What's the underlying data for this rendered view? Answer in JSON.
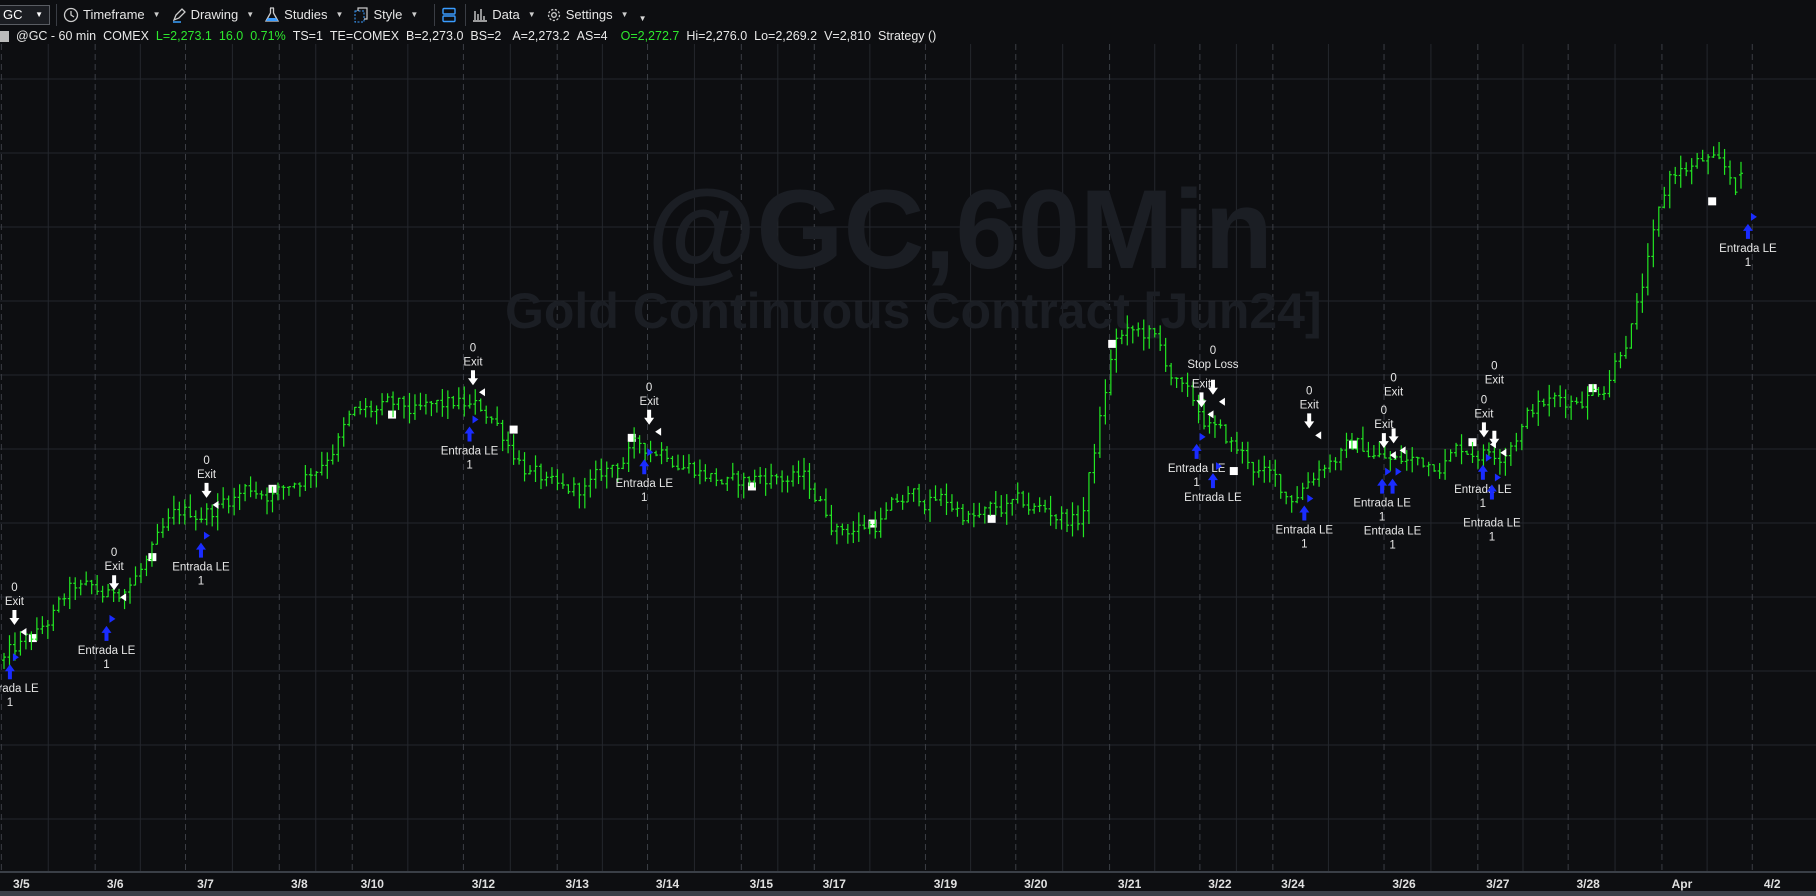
{
  "toolbar": {
    "symbol": "GC",
    "items": [
      {
        "label": "Timeframe",
        "icon": "clock-icon"
      },
      {
        "label": "Drawing",
        "icon": "pen-icon"
      },
      {
        "label": "Studies",
        "icon": "flask-icon"
      },
      {
        "label": "Style",
        "icon": "style-icon"
      },
      {
        "label": "Data",
        "icon": "bar-chart-icon"
      },
      {
        "label": "Settings",
        "icon": "gear-icon"
      }
    ]
  },
  "info": {
    "symbol": "@GC - 60 min",
    "exchange": "COMEX",
    "last": "L=2,273.1",
    "change": "16.0",
    "change_pct": "0.71%",
    "ts": "TS=1",
    "te": "TE=COMEX",
    "bid": "B=2,273.0",
    "bid_size": "BS=2",
    "ask": "A=2,273.2",
    "ask_size": "AS=4",
    "open": "O=2,272.7",
    "high": "Hi=2,276.0",
    "low": "Lo=2,269.2",
    "volume": "V=2,810",
    "strategy": "Strategy ()"
  },
  "watermark": {
    "line1": "@GC,60Min",
    "line2": "Gold Continuous Contract [Jun24]"
  },
  "colors": {
    "background": "#0d0e11",
    "bar": "#22e622",
    "entry": "#1a2cff",
    "exit": "#ffffff",
    "grid": "#24272d"
  },
  "chart_data": {
    "type": "ohlc",
    "interval": "60 min",
    "last_bar": {
      "open": 2272.7,
      "high": 2276.0,
      "low": 2269.2,
      "close": 2273.1
    },
    "close_path": [
      2149.8,
      2155.7,
      2167.4,
      2165.1,
      2173.3,
      2185.0,
      2188.5,
      2193.8,
      2192.9,
      2199.7,
      2211.4,
      2212.6,
      2211.4,
      2213.8,
      2212.0,
      2199.7,
      2190.3,
      2193.8,
      2202.6,
      2204.1,
      2199.1,
      2193.8,
      2196.8,
      2195.3,
      2183.6,
      2184.4,
      2190.3,
      2190.3,
      2185.6,
      2188.0,
      2187.4,
      2185.0,
      2231.4,
      2232.0,
      2215.8,
      2206.1,
      2198.8,
      2190.9,
      2201.2,
      2204.1,
      2199.7,
      2200.3,
      2204.1,
      2203.2,
      2214.3,
      2215.8,
      2219.6,
      2239.3,
      2273.0,
      2275.9,
      2268.0
    ],
    "x_tick_labels": [
      {
        "label": "3/5",
        "at": 0.5
      },
      {
        "label": "3/6",
        "at": 3.2
      },
      {
        "label": "3/7",
        "at": 5.8
      },
      {
        "label": "3/8",
        "at": 8.5
      },
      {
        "label": "3/10",
        "at": 10.6
      },
      {
        "label": "3/12",
        "at": 13.8
      },
      {
        "label": "3/13",
        "at": 16.5
      },
      {
        "label": "3/14",
        "at": 19.1
      },
      {
        "label": "3/15",
        "at": 21.8
      },
      {
        "label": "3/17",
        "at": 23.9
      },
      {
        "label": "3/19",
        "at": 27.1
      },
      {
        "label": "3/20",
        "at": 29.7
      },
      {
        "label": "3/21",
        "at": 32.4
      },
      {
        "label": "3/22",
        "at": 35.0
      },
      {
        "label": "3/24",
        "at": 37.1
      },
      {
        "label": "3/26",
        "at": 40.3
      },
      {
        "label": "3/27",
        "at": 43.0
      },
      {
        "label": "3/28",
        "at": 45.6
      },
      {
        "label": "Apr",
        "at": 48.3
      },
      {
        "label": "4/2",
        "at": 50.9
      }
    ],
    "markers": [
      [
        0.83,
        2155.4
      ],
      [
        4.27,
        2175.9
      ],
      [
        7.73,
        2193.2
      ],
      [
        11.17,
        2212.0
      ],
      [
        14.67,
        2208.2
      ],
      [
        18.07,
        2206.1
      ],
      [
        21.53,
        2193.8
      ],
      [
        25.0,
        2184.4
      ],
      [
        28.43,
        2185.6
      ],
      [
        31.9,
        2229.9
      ],
      [
        35.4,
        2197.7
      ],
      [
        38.83,
        2204.4
      ],
      [
        42.27,
        2205.0
      ],
      [
        45.73,
        2218.7
      ],
      [
        49.17,
        2266.0
      ]
    ],
    "trades": [
      {
        "entry_at": 0.17,
        "entry_price": 2149.8,
        "entry_label": "Entrada LE",
        "entry_qty": "1",
        "exit_at": 0.3,
        "exit_price": 2157.2,
        "exit_label": "Exit",
        "exit_qty": "0"
      },
      {
        "entry_at": 2.95,
        "entry_price": 2159.5,
        "entry_label": "Entrada LE",
        "entry_qty": "1",
        "exit_at": 3.17,
        "exit_price": 2166.0,
        "exit_label": "Exit",
        "exit_qty": "0"
      },
      {
        "entry_at": 5.67,
        "entry_price": 2180.6,
        "entry_label": "Entrada LE",
        "entry_qty": "1",
        "exit_at": 5.83,
        "exit_price": 2189.4,
        "exit_label": "Exit",
        "exit_qty": "0"
      },
      {
        "entry_at": 13.4,
        "entry_price": 2210.0,
        "entry_label": "Entrada LE",
        "entry_qty": "1",
        "exit_at": 13.5,
        "exit_price": 2217.9,
        "exit_label": "Exit",
        "exit_qty": "0"
      },
      {
        "entry_at": 18.43,
        "entry_price": 2201.7,
        "entry_label": "Entrada LE",
        "entry_qty": "1",
        "exit_at": 18.57,
        "exit_price": 2207.9,
        "exit_label": "Exit",
        "exit_qty": "0"
      },
      {
        "entry_at": 34.33,
        "entry_price": 2205.6,
        "entry_label": "Entrada LE",
        "entry_qty": "1",
        "exit_at": 34.47,
        "exit_price": 2212.3,
        "exit_label": "Exit",
        "exit_qty": ""
      },
      {
        "entry_at": 34.8,
        "entry_price": 2198.2,
        "entry_label": "Entrada LE",
        "entry_qty": "",
        "exit_at": 34.8,
        "exit_price": 2215.5,
        "exit_label": "Stop Loss",
        "exit_qty": "0"
      },
      {
        "entry_at": 37.43,
        "entry_price": 2190.0,
        "entry_label": "Entrada LE",
        "entry_qty": "1",
        "exit_at": 37.57,
        "exit_price": 2207.0,
        "exit_label": "Exit",
        "exit_qty": "0"
      },
      {
        "entry_at": 39.67,
        "entry_price": 2196.8,
        "entry_label": "Entrada LE",
        "entry_qty": "1",
        "exit_at": 39.72,
        "exit_price": 2202.0,
        "exit_label": "Exit",
        "exit_qty": "0"
      },
      {
        "entry_at": 39.97,
        "entry_price": 2196.8,
        "entry_label": "Entrada LE",
        "entry_qty": "1",
        "exit_at": 40.0,
        "exit_price": 2203.2,
        "exit_label": "Exit",
        "exit_qty": "0"
      },
      {
        "entry_at": 42.57,
        "entry_price": 2200.3,
        "entry_label": "Entrada LE",
        "entry_qty": "1",
        "exit_at": 42.6,
        "exit_price": 2204.7,
        "exit_label": "Exit",
        "exit_qty": "0"
      },
      {
        "entry_at": 42.83,
        "entry_price": 2195.3,
        "entry_label": "Entrada LE",
        "entry_qty": "1",
        "exit_at": 42.9,
        "exit_price": 2202.6,
        "exit_label": "Exit",
        "exit_qty": "0"
      },
      {
        "entry_at": 50.2,
        "entry_price": 2261.3,
        "entry_label": "Entrada LE",
        "entry_qty": "1"
      }
    ]
  }
}
